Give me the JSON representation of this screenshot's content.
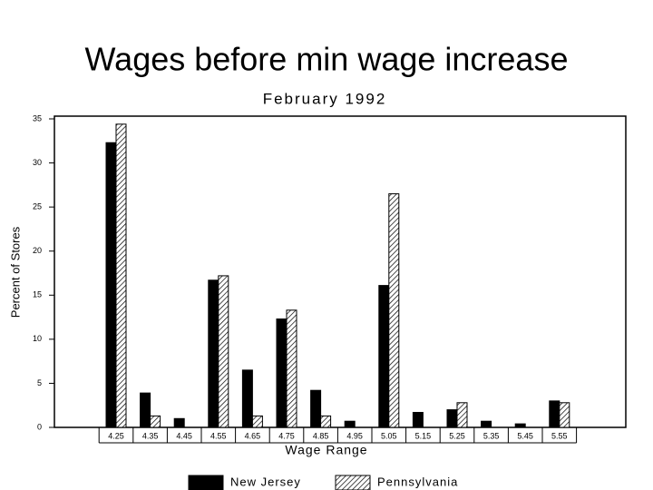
{
  "slide_title": "Wages before min wage increase",
  "chart_data": {
    "type": "bar",
    "title": "February 1992",
    "x_label": "Wage Range",
    "y_label": "Percent of Stores",
    "categories": [
      "4.25",
      "4.35",
      "4.45",
      "4.55",
      "4.65",
      "4.75",
      "4.85",
      "4.95",
      "5.05",
      "5.15",
      "5.25",
      "5.35",
      "5.45",
      "5.55"
    ],
    "series": [
      {
        "name": "New Jersey",
        "color": "#000000",
        "hatch": false,
        "values": [
          32.3,
          3.9,
          1.0,
          16.7,
          6.5,
          12.3,
          4.2,
          0.7,
          16.1,
          1.7,
          2.0,
          0.7,
          0.4,
          3.0
        ]
      },
      {
        "name": "Pennsylvania",
        "color": "#000000",
        "hatch": true,
        "values": [
          34.4,
          1.3,
          0,
          17.2,
          1.3,
          13.3,
          1.3,
          0,
          26.5,
          0,
          2.8,
          0,
          0,
          2.8
        ]
      }
    ],
    "ylim": [
      0,
      35
    ],
    "yticks": [
      0,
      5,
      10,
      15,
      20,
      25,
      30,
      35
    ],
    "grid": false
  }
}
